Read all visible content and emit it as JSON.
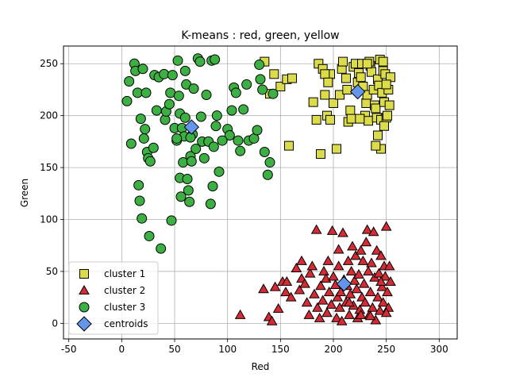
{
  "chart_data": {
    "type": "scatter",
    "title": "K-means : red, green, yellow",
    "xlabel": "Red",
    "ylabel": "Green",
    "xlim": [
      -55,
      317
    ],
    "ylim": [
      -15,
      267
    ],
    "xticks": [
      -50,
      0,
      50,
      100,
      150,
      200,
      250,
      300
    ],
    "yticks": [
      0,
      50,
      100,
      150,
      200,
      250
    ],
    "grid": true,
    "legend_position": "lower-left",
    "series": [
      {
        "name": "cluster 1",
        "marker": "square",
        "color": "#dcdc4a",
        "points": [
          [
            135,
            252
          ],
          [
            144,
            240
          ],
          [
            150,
            228
          ],
          [
            156,
            235
          ],
          [
            161,
            236
          ],
          [
            140,
            221
          ],
          [
            158,
            171
          ],
          [
            181,
            213
          ],
          [
            184,
            196
          ],
          [
            188,
            163
          ],
          [
            197,
            240
          ],
          [
            186,
            250
          ],
          [
            190,
            245
          ],
          [
            192,
            240
          ],
          [
            195,
            232
          ],
          [
            192,
            220
          ],
          [
            194,
            200
          ],
          [
            197,
            196
          ],
          [
            200,
            212
          ],
          [
            203,
            168
          ],
          [
            206,
            220
          ],
          [
            208,
            245
          ],
          [
            209,
            252
          ],
          [
            212,
            236
          ],
          [
            213,
            225
          ],
          [
            214,
            194
          ],
          [
            216,
            205
          ],
          [
            217,
            197
          ],
          [
            219,
            247
          ],
          [
            221,
            250
          ],
          [
            223,
            232
          ],
          [
            224,
            241
          ],
          [
            226,
            237
          ],
          [
            227,
            250
          ],
          [
            228,
            228
          ],
          [
            230,
            200
          ],
          [
            231,
            212
          ],
          [
            232,
            220
          ],
          [
            233,
            195
          ],
          [
            235,
            248
          ],
          [
            236,
            242
          ],
          [
            238,
            225
          ],
          [
            239,
            210
          ],
          [
            240,
            207
          ],
          [
            241,
            198
          ],
          [
            242,
            235
          ],
          [
            243,
            229
          ],
          [
            244,
            254
          ],
          [
            245,
            196
          ],
          [
            246,
            222
          ],
          [
            247,
            243
          ],
          [
            248,
            213
          ],
          [
            249,
            240
          ],
          [
            250,
            198
          ],
          [
            251,
            200
          ],
          [
            252,
            225
          ],
          [
            253,
            210
          ],
          [
            254,
            237
          ],
          [
            245,
            168
          ],
          [
            242,
            181
          ],
          [
            240,
            171
          ],
          [
            234,
            252
          ],
          [
            232,
            250
          ],
          [
            247,
            252
          ],
          [
            225,
            197
          ],
          [
            250,
            230
          ],
          [
            248,
            190
          ]
        ]
      },
      {
        "name": "cluster 2",
        "marker": "triangle",
        "color": "#d62b35",
        "points": [
          [
            112,
            8
          ],
          [
            134,
            33
          ],
          [
            139,
            6
          ],
          [
            142,
            2
          ],
          [
            145,
            35
          ],
          [
            148,
            14
          ],
          [
            152,
            40
          ],
          [
            155,
            30
          ],
          [
            160,
            25
          ],
          [
            165,
            53
          ],
          [
            168,
            32
          ],
          [
            170,
            43
          ],
          [
            173,
            38
          ],
          [
            175,
            20
          ],
          [
            177,
            8
          ],
          [
            178,
            48
          ],
          [
            180,
            55
          ],
          [
            182,
            28
          ],
          [
            184,
            90
          ],
          [
            185,
            15
          ],
          [
            187,
            5
          ],
          [
            188,
            36
          ],
          [
            190,
            22
          ],
          [
            191,
            50
          ],
          [
            193,
            43
          ],
          [
            194,
            10
          ],
          [
            195,
            60
          ],
          [
            196,
            30
          ],
          [
            198,
            18
          ],
          [
            199,
            89
          ],
          [
            200,
            45
          ],
          [
            202,
            37
          ],
          [
            203,
            5
          ],
          [
            204,
            25
          ],
          [
            205,
            55
          ],
          [
            206,
            15
          ],
          [
            207,
            30
          ],
          [
            208,
            2
          ],
          [
            209,
            87
          ],
          [
            210,
            42
          ],
          [
            212,
            20
          ],
          [
            213,
            36
          ],
          [
            214,
            60
          ],
          [
            215,
            8
          ],
          [
            216,
            28
          ],
          [
            217,
            50
          ],
          [
            218,
            74
          ],
          [
            219,
            17
          ],
          [
            220,
            41
          ],
          [
            221,
            65
          ],
          [
            222,
            33
          ],
          [
            223,
            5
          ],
          [
            224,
            47
          ],
          [
            225,
            13
          ],
          [
            226,
            70
          ],
          [
            227,
            25
          ],
          [
            228,
            60
          ],
          [
            229,
            38
          ],
          [
            230,
            20
          ],
          [
            231,
            78
          ],
          [
            232,
            90
          ],
          [
            233,
            50
          ],
          [
            234,
            8
          ],
          [
            235,
            30
          ],
          [
            236,
            58
          ],
          [
            237,
            15
          ],
          [
            238,
            88
          ],
          [
            239,
            44
          ],
          [
            240,
            3
          ],
          [
            241,
            70
          ],
          [
            242,
            25
          ],
          [
            243,
            48
          ],
          [
            244,
            12
          ],
          [
            245,
            65
          ],
          [
            246,
            35
          ],
          [
            247,
            20
          ],
          [
            248,
            55
          ],
          [
            249,
            45
          ],
          [
            250,
            93
          ],
          [
            251,
            30
          ],
          [
            252,
            15
          ],
          [
            253,
            55
          ],
          [
            254,
            40
          ],
          [
            156,
            40
          ],
          [
            170,
            60
          ],
          [
            205,
            71
          ],
          [
            215,
            20
          ],
          [
            226,
            8
          ],
          [
            235,
            7
          ],
          [
            245,
            40
          ],
          [
            250,
            10
          ]
        ]
      },
      {
        "name": "cluster 3",
        "marker": "circle",
        "color": "#3cb043",
        "points": [
          [
            5,
            214
          ],
          [
            7,
            233
          ],
          [
            9,
            173
          ],
          [
            12,
            250
          ],
          [
            13,
            243
          ],
          [
            15,
            222
          ],
          [
            16,
            133
          ],
          [
            17,
            118
          ],
          [
            18,
            197
          ],
          [
            19,
            101
          ],
          [
            20,
            245
          ],
          [
            21,
            178
          ],
          [
            22,
            187
          ],
          [
            23,
            222
          ],
          [
            24,
            165
          ],
          [
            25,
            159
          ],
          [
            26,
            84
          ],
          [
            27,
            156
          ],
          [
            30,
            169
          ],
          [
            31,
            239
          ],
          [
            33,
            205
          ],
          [
            35,
            237
          ],
          [
            37,
            72
          ],
          [
            40,
            240
          ],
          [
            41,
            196
          ],
          [
            42,
            204
          ],
          [
            45,
            211
          ],
          [
            46,
            222
          ],
          [
            47,
            99
          ],
          [
            48,
            239
          ],
          [
            50,
            188
          ],
          [
            52,
            176
          ],
          [
            53,
            253
          ],
          [
            54,
            219
          ],
          [
            55,
            140
          ],
          [
            56,
            122
          ],
          [
            57,
            188
          ],
          [
            58,
            155
          ],
          [
            59,
            180
          ],
          [
            60,
            243
          ],
          [
            61,
            230
          ],
          [
            62,
            139
          ],
          [
            63,
            128
          ],
          [
            64,
            117
          ],
          [
            65,
            161
          ],
          [
            66,
            156
          ],
          [
            67,
            182
          ],
          [
            68,
            226
          ],
          [
            70,
            168
          ],
          [
            72,
            255
          ],
          [
            74,
            252
          ],
          [
            76,
            175
          ],
          [
            78,
            159
          ],
          [
            80,
            220
          ],
          [
            82,
            175
          ],
          [
            84,
            115
          ],
          [
            85,
            253
          ],
          [
            86,
            132
          ],
          [
            87,
            170
          ],
          [
            88,
            254
          ],
          [
            89,
            190
          ],
          [
            90,
            200
          ],
          [
            92,
            146
          ],
          [
            100,
            187
          ],
          [
            102,
            181
          ],
          [
            104,
            205
          ],
          [
            106,
            227
          ],
          [
            108,
            222
          ],
          [
            110,
            176
          ],
          [
            112,
            166
          ],
          [
            115,
            206
          ],
          [
            118,
            230
          ],
          [
            120,
            176
          ],
          [
            125,
            178
          ],
          [
            128,
            186
          ],
          [
            130,
            249
          ],
          [
            131,
            235
          ],
          [
            133,
            225
          ],
          [
            135,
            165
          ],
          [
            138,
            143
          ],
          [
            140,
            155
          ],
          [
            143,
            221
          ],
          [
            52,
            178
          ],
          [
            55,
            202
          ],
          [
            60,
            198
          ],
          [
            65,
            179
          ],
          [
            75,
            199
          ],
          [
            95,
            176
          ]
        ]
      },
      {
        "name": "centroids",
        "marker": "diamond",
        "color": "#6495ed",
        "points": [
          [
            66,
            189
          ],
          [
            223,
            223
          ],
          [
            210,
            38
          ]
        ]
      }
    ]
  }
}
